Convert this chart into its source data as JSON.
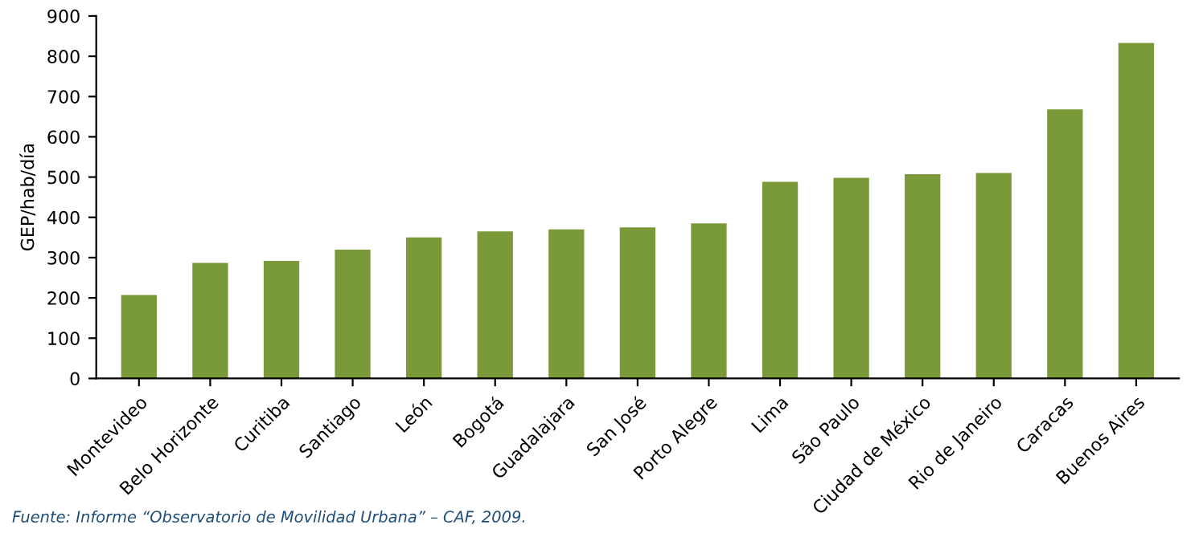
{
  "chart_data": {
    "type": "bar",
    "ylabel": "GEP/hab/día",
    "categories": [
      "Montevideo",
      "Belo Horizonte",
      "Curitiba",
      "Santiago",
      "León",
      "Bogotá",
      "Guadalajara",
      "San José",
      "Porto Alegre",
      "Lima",
      "São Paulo",
      "Ciudad de México",
      "Rio de Janeiro",
      "Caracas",
      "Buenos Aires"
    ],
    "values": [
      207,
      287,
      292,
      320,
      350,
      365,
      370,
      375,
      385,
      488,
      498,
      507,
      510,
      668,
      833
    ],
    "color": "#7a9a3a",
    "ylim": [
      0,
      900
    ],
    "yticks": [
      0,
      100,
      200,
      300,
      400,
      500,
      600,
      700,
      800,
      900
    ],
    "grid": false,
    "legend": false,
    "annotations": [
      "Fuente: Informe “Observatorio de Movilidad Urbana” – CAF, 2009."
    ]
  }
}
